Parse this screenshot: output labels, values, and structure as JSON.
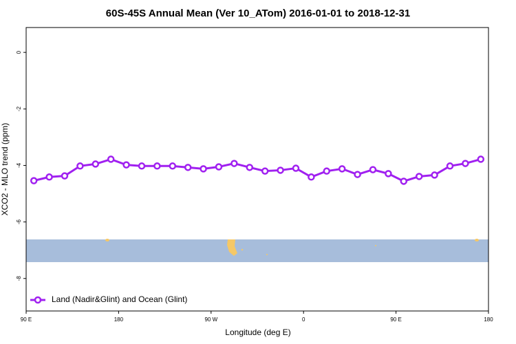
{
  "chart_data": {
    "type": "line",
    "title": "60S-45S Annual Mean (Ver 10_ATom)   2016-01-01 to 2018-12-31",
    "x_label": "Longitude (deg E)",
    "y_label": "XCO2 - MLO trend (ppm)",
    "x": [
      97.5,
      112.5,
      127.5,
      142.5,
      157.5,
      172.5,
      187.5,
      202.5,
      217.5,
      232.5,
      247.5,
      262.5,
      277.5,
      292.5,
      307.5,
      322.5,
      337.5,
      352.5,
      367.5,
      382.5,
      397.5,
      412.5,
      427.5,
      442.5,
      457.5,
      472.5,
      487.5,
      502.5,
      517.5,
      532.5
    ],
    "series": [
      {
        "name": "Land (Nadir&Glint) and Ocean (Glint)",
        "color": "#a020f0",
        "values": [
          -4.54,
          -4.41,
          -4.37,
          -4.02,
          -3.95,
          -3.78,
          -3.98,
          -4.02,
          -4.02,
          -4.02,
          -4.07,
          -4.12,
          -4.05,
          -3.93,
          -4.07,
          -4.2,
          -4.17,
          -4.1,
          -4.41,
          -4.2,
          -4.12,
          -4.32,
          -4.15,
          -4.29,
          -4.56,
          -4.39,
          -4.34,
          -4.02,
          -3.93,
          -3.78
        ]
      }
    ],
    "xlim": [
      90,
      540
    ],
    "xticks": [
      {
        "value": 90,
        "label": "90 E"
      },
      180,
      {
        "value": 270,
        "label": "90 W"
      },
      {
        "value": 360,
        "label": "0"
      },
      {
        "value": 450,
        "label": "90 E"
      },
      {
        "value": 540,
        "label": "180"
      }
    ],
    "ylim": [
      -9.15,
      0.88
    ],
    "yticks": [
      0,
      -2,
      -4,
      -6,
      -8
    ],
    "legend": "bottom-left"
  }
}
